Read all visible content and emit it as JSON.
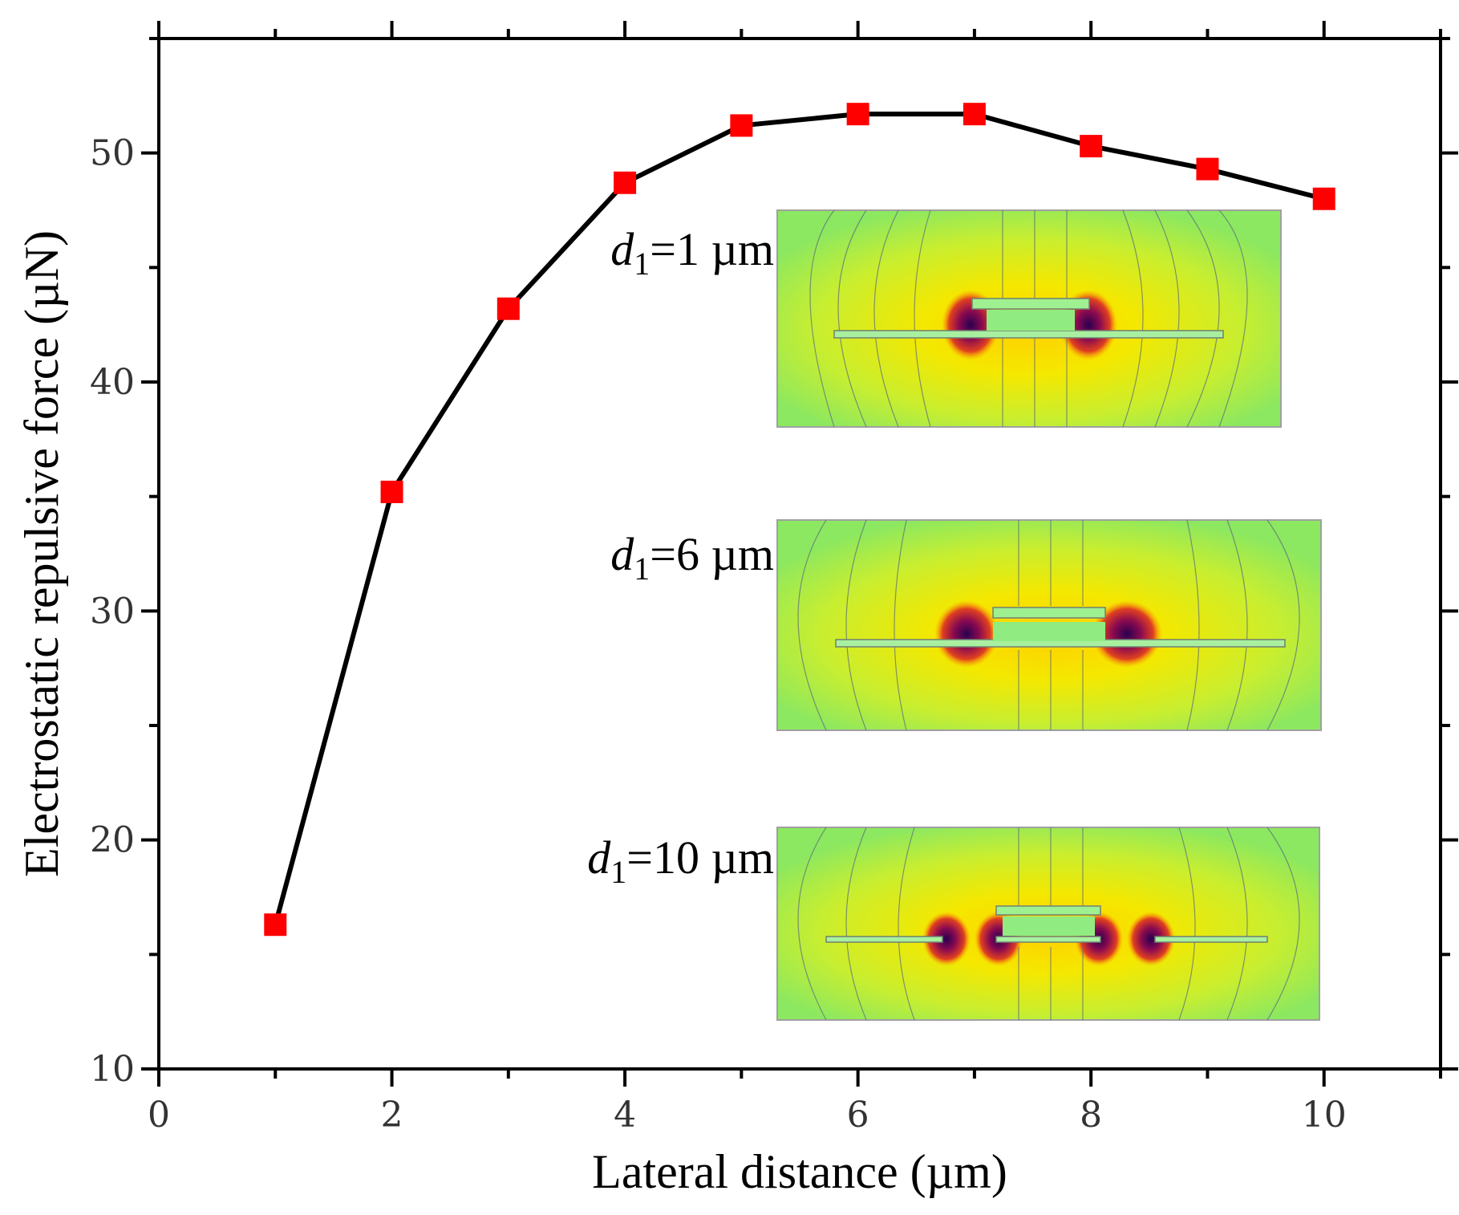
{
  "chart_data": {
    "type": "line",
    "title": "",
    "xlabel": "Lateral distance (µm)",
    "ylabel": "Electrostatic repulsive force (µN)",
    "xlim": [
      0,
      11
    ],
    "ylim": [
      10,
      55
    ],
    "x_ticks": [
      0,
      2,
      4,
      6,
      8,
      10
    ],
    "y_ticks": [
      10,
      20,
      30,
      40,
      50
    ],
    "grid": false,
    "legend": "none",
    "series": [
      {
        "x": [
          1,
          2,
          3,
          4,
          5,
          6,
          7,
          8,
          9,
          10
        ],
        "y": [
          16.3,
          35.2,
          43.2,
          48.7,
          51.2,
          51.7,
          51.7,
          50.3,
          49.3,
          48.0
        ],
        "line_color": "#000000",
        "marker": "square",
        "marker_color": "#ff0000"
      }
    ],
    "insets": [
      {
        "var": "d",
        "sub": "1",
        "text": "=1 µm"
      },
      {
        "var": "d",
        "sub": "1",
        "text": "=6 µm"
      },
      {
        "var": "d",
        "sub": "1",
        "text": "=10 µm"
      }
    ]
  }
}
